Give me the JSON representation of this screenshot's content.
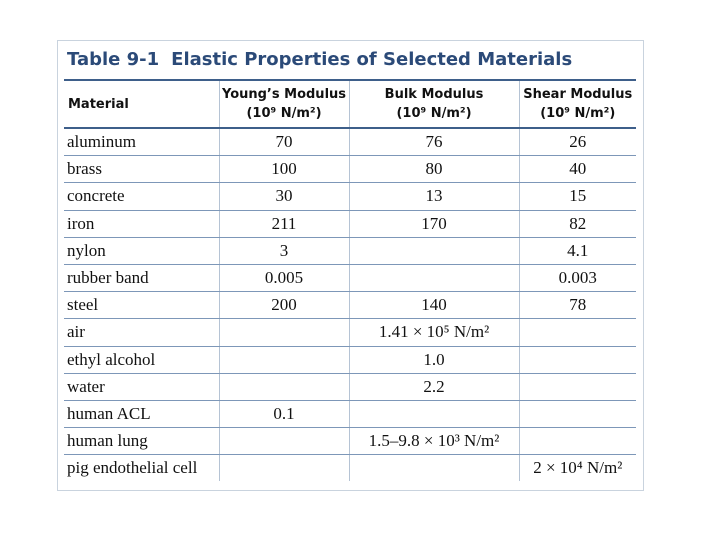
{
  "table": {
    "label": "Table 9-1",
    "title": "Elastic Properties of Selected Materials",
    "header": [
      {
        "name": "Material",
        "unit": null
      },
      {
        "name": "Young’s Modulus",
        "unit": "(10⁹ N/m²)"
      },
      {
        "name": "Bulk Modulus",
        "unit": "(10⁹ N/m²)"
      },
      {
        "name": "Shear Modulus",
        "unit": "(10⁹ N/m²)"
      }
    ],
    "rows": [
      [
        "aluminum",
        "70",
        "76",
        "26"
      ],
      [
        "brass",
        "100",
        "80",
        "40"
      ],
      [
        "concrete",
        "30",
        "13",
        "15"
      ],
      [
        "iron",
        "211",
        "170",
        "82"
      ],
      [
        "nylon",
        "3",
        null,
        "4.1"
      ],
      [
        "rubber band",
        "0.005",
        null,
        "0.003"
      ],
      [
        "steel",
        "200",
        "140",
        "78"
      ],
      [
        "air",
        null,
        "1.41 × 10⁵ N/m²",
        null
      ],
      [
        "ethyl alcohol",
        null,
        "1.0",
        null
      ],
      [
        "water",
        null,
        "2.2",
        null
      ],
      [
        "human ACL",
        "0.1",
        null,
        null
      ],
      [
        "human lung",
        null,
        "1.5–9.8 × 10³ N/m²",
        null
      ],
      [
        "pig endothelial cell",
        null,
        null,
        "2 × 10⁴ N/m²"
      ]
    ]
  }
}
